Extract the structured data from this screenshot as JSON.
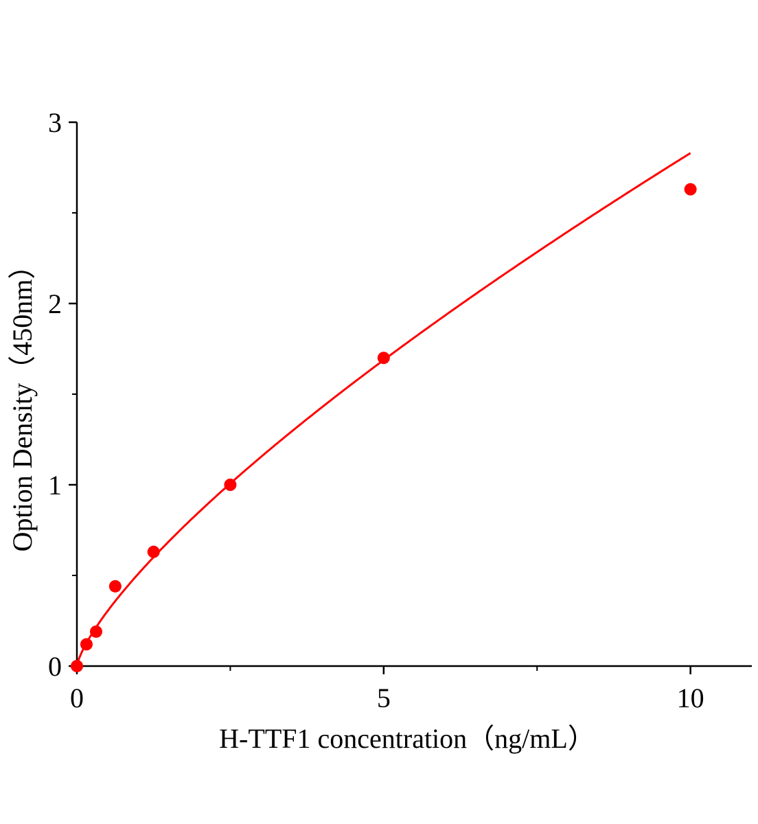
{
  "chart_data": {
    "type": "scatter",
    "title": "",
    "xlabel": "H-TTF1 concentration（ng/mL）",
    "ylabel": "Option Density（450nm）",
    "xlim": [
      0,
      11
    ],
    "ylim": [
      0,
      3
    ],
    "x_ticks": [
      0,
      5,
      10
    ],
    "x_tick_labels": [
      "0",
      "5",
      "10"
    ],
    "x_minor_ticks": [
      2.5,
      7.5
    ],
    "y_ticks": [
      0,
      1,
      2,
      3
    ],
    "y_tick_labels": [
      "0",
      "1",
      "2",
      "3"
    ],
    "y_minor_ticks": [
      0.5,
      1.5,
      2.5
    ],
    "grid": false,
    "series": [
      {
        "x": [
          0,
          0.156,
          0.313,
          0.625,
          1.25,
          2.5,
          5,
          10
        ],
        "y": [
          0,
          0.12,
          0.19,
          0.44,
          0.63,
          1.0,
          1.7,
          2.63
        ],
        "color": "#ff0000",
        "fit_line": true
      }
    ]
  }
}
